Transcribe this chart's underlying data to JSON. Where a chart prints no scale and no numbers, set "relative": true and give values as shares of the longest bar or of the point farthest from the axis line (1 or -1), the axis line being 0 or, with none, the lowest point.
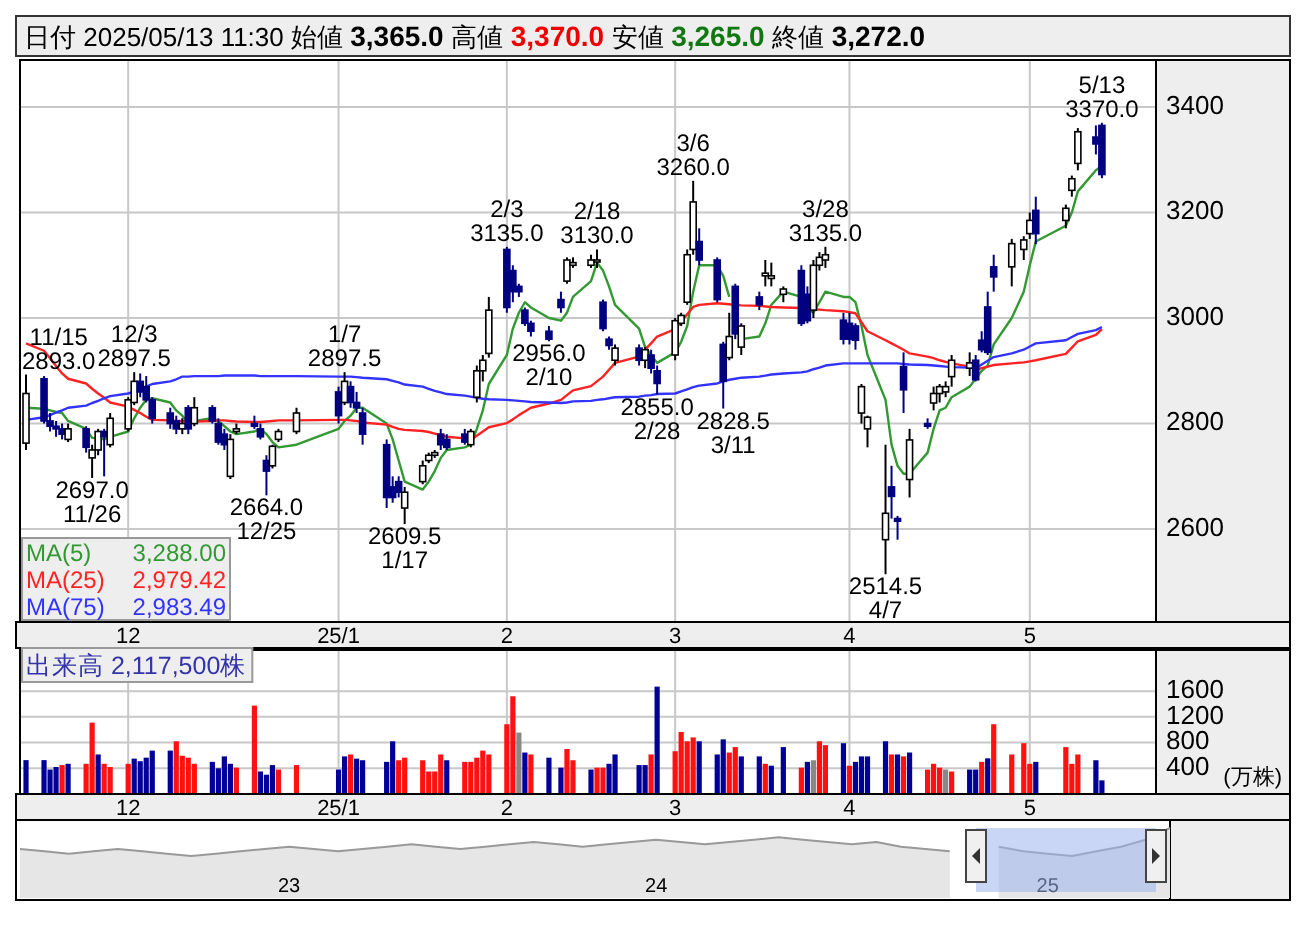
{
  "chart_data": [
    {
      "type": "candlestick",
      "title": "日付 2025/05/13 11:30 始値 3,365.0 高値 3,370.0 安値 3,265.0 終値 3,272.0",
      "x": [
        "2024-11-15",
        "2024-11-18",
        "2024-11-19",
        "2024-11-20",
        "2024-11-21",
        "2024-11-22",
        "2024-11-25",
        "2024-11-26",
        "2024-11-27",
        "2024-11-28",
        "2024-11-29",
        "2024-12-02",
        "2024-12-03",
        "2024-12-04",
        "2024-12-05",
        "2024-12-06",
        "2024-12-09",
        "2024-12-10",
        "2024-12-11",
        "2024-12-12",
        "2024-12-13",
        "2024-12-16",
        "2024-12-17",
        "2024-12-18",
        "2024-12-19",
        "2024-12-20",
        "2024-12-23",
        "2024-12-24",
        "2024-12-25",
        "2024-12-26",
        "2024-12-27",
        "2024-12-30",
        "2025-01-06",
        "2025-01-07",
        "2025-01-08",
        "2025-01-09",
        "2025-01-10",
        "2025-01-14",
        "2025-01-15",
        "2025-01-16",
        "2025-01-17",
        "2025-01-20",
        "2025-01-21",
        "2025-01-22",
        "2025-01-23",
        "2025-01-24",
        "2025-01-27",
        "2025-01-28",
        "2025-01-29",
        "2025-01-30",
        "2025-01-31",
        "2025-02-03",
        "2025-02-04",
        "2025-02-05",
        "2025-02-06",
        "2025-02-07",
        "2025-02-10",
        "2025-02-12",
        "2025-02-13",
        "2025-02-14",
        "2025-02-17",
        "2025-02-18",
        "2025-02-19",
        "2025-02-20",
        "2025-02-21",
        "2025-02-25",
        "2025-02-26",
        "2025-02-27",
        "2025-02-28",
        "2025-03-03",
        "2025-03-04",
        "2025-03-05",
        "2025-03-06",
        "2025-03-07",
        "2025-03-10",
        "2025-03-11",
        "2025-03-12",
        "2025-03-13",
        "2025-03-14",
        "2025-03-17",
        "2025-03-18",
        "2025-03-19",
        "2025-03-21",
        "2025-03-24",
        "2025-03-25",
        "2025-03-26",
        "2025-03-27",
        "2025-03-28",
        "2025-03-31",
        "2025-04-01",
        "2025-04-02",
        "2025-04-03",
        "2025-04-04",
        "2025-04-07",
        "2025-04-08",
        "2025-04-09",
        "2025-04-10",
        "2025-04-11",
        "2025-04-14",
        "2025-04-15",
        "2025-04-16",
        "2025-04-17",
        "2025-04-18",
        "2025-04-21",
        "2025-04-22",
        "2025-04-23",
        "2025-04-24",
        "2025-04-25",
        "2025-04-28",
        "2025-04-30",
        "2025-05-01",
        "2025-05-02",
        "2025-05-07",
        "2025-05-08",
        "2025-05-09",
        "2025-05-12",
        "2025-05-13"
      ],
      "ohlc": [
        [
          2763,
          2893,
          2750,
          2857
        ],
        [
          2885,
          2890,
          2800,
          2805
        ],
        [
          2805,
          2820,
          2785,
          2795
        ],
        [
          2795,
          2805,
          2775,
          2790
        ],
        [
          2790,
          2800,
          2770,
          2780
        ],
        [
          2770,
          2800,
          2765,
          2790
        ],
        [
          2790,
          2795,
          2745,
          2755
        ],
        [
          2735,
          2760,
          2697,
          2750
        ],
        [
          2750,
          2790,
          2740,
          2785
        ],
        [
          2785,
          2790,
          2700,
          2775
        ],
        [
          2760,
          2820,
          2755,
          2810
        ],
        [
          2790,
          2850,
          2785,
          2845
        ],
        [
          2840,
          2897.5,
          2835,
          2880
        ],
        [
          2880,
          2895,
          2850,
          2860
        ],
        [
          2870,
          2890,
          2840,
          2845
        ],
        [
          2845,
          2850,
          2800,
          2810
        ],
        [
          2820,
          2830,
          2790,
          2800
        ],
        [
          2805,
          2815,
          2780,
          2790
        ],
        [
          2790,
          2810,
          2780,
          2800
        ],
        [
          2830,
          2835,
          2780,
          2790
        ],
        [
          2800,
          2850,
          2795,
          2830
        ],
        [
          2830,
          2835,
          2800,
          2805
        ],
        [
          2800,
          2810,
          2760,
          2765
        ],
        [
          2780,
          2790,
          2750,
          2760
        ],
        [
          2700,
          2780,
          2695,
          2770
        ],
        [
          2785,
          2800,
          2780,
          2790
        ],
        [
          2800,
          2815,
          2790,
          2795
        ],
        [
          2790,
          2800,
          2770,
          2775
        ],
        [
          2730,
          2740,
          2664,
          2710
        ],
        [
          2720,
          2760,
          2715,
          2757
        ],
        [
          2770,
          2790,
          2765,
          2785
        ],
        [
          2785,
          2830,
          2780,
          2820
        ],
        [
          2860,
          2870,
          2800,
          2815
        ],
        [
          2840,
          2897.5,
          2835,
          2880
        ],
        [
          2870,
          2880,
          2830,
          2840
        ],
        [
          2840,
          2860,
          2820,
          2830
        ],
        [
          2820,
          2830,
          2760,
          2780
        ],
        [
          2760,
          2770,
          2640,
          2660
        ],
        [
          2680,
          2700,
          2650,
          2660
        ],
        [
          2690,
          2700,
          2660,
          2670
        ],
        [
          2640,
          2680,
          2609.5,
          2670
        ],
        [
          2690,
          2730,
          2685,
          2720
        ],
        [
          2730,
          2745,
          2725,
          2740
        ],
        [
          2740,
          2750,
          2735,
          2745
        ],
        [
          2780,
          2790,
          2750,
          2760
        ],
        [
          2770,
          2780,
          2750,
          2755
        ],
        [
          2780,
          2790,
          2760,
          2765
        ],
        [
          2760,
          2790,
          2755,
          2785
        ],
        [
          2850,
          2910,
          2840,
          2900
        ],
        [
          2900,
          2930,
          2880,
          2920
        ],
        [
          2933,
          3040,
          2925,
          3015
        ],
        [
          3130,
          3135,
          3010,
          3020
        ],
        [
          3090,
          3100,
          3030,
          3050
        ],
        [
          3060,
          3065,
          3040,
          3050
        ],
        [
          3015,
          3020,
          2985,
          2990
        ],
        [
          2990,
          2995,
          2965,
          2975
        ],
        [
          2975,
          2985,
          2956,
          2960
        ],
        [
          3035,
          3050,
          3010,
          3020
        ],
        [
          3070,
          3115,
          3065,
          3110
        ],
        [
          3100,
          3115,
          3095,
          3105
        ],
        [
          3100,
          3120,
          3095,
          3110
        ],
        [
          3108,
          3130,
          3095,
          3110
        ],
        [
          3030,
          3035,
          2975,
          2980
        ],
        [
          2960,
          2965,
          2940,
          2948
        ],
        [
          2920,
          2950,
          2910,
          2943
        ],
        [
          2943,
          2950,
          2910,
          2920
        ],
        [
          2920,
          2945,
          2905,
          2940
        ],
        [
          2930,
          2940,
          2895,
          2905
        ],
        [
          2900,
          2910,
          2855,
          2876
        ],
        [
          2930,
          3000,
          2920,
          2995
        ],
        [
          2990,
          3010,
          2985,
          3005
        ],
        [
          3030,
          3130,
          3025,
          3120
        ],
        [
          3130,
          3260,
          3120,
          3220
        ],
        [
          3145,
          3170,
          3100,
          3110
        ],
        [
          3110,
          3115,
          3030,
          3035
        ],
        [
          2950,
          2955,
          2828.5,
          2880
        ],
        [
          2925,
          3010,
          2920,
          2965
        ],
        [
          3060,
          3065,
          2960,
          2970
        ],
        [
          2945,
          2990,
          2930,
          2985
        ],
        [
          3040,
          3050,
          3015,
          3025
        ],
        [
          3080,
          3110,
          3060,
          3085
        ],
        [
          3075,
          3105,
          3060,
          3080
        ],
        [
          3045,
          3060,
          3030,
          3055
        ],
        [
          3090,
          3100,
          2985,
          2990
        ],
        [
          3045,
          3060,
          2990,
          2995
        ],
        [
          3015,
          3110,
          3000,
          3100
        ],
        [
          3100,
          3125,
          3090,
          3115
        ],
        [
          3110,
          3135,
          3095,
          3120
        ],
        [
          2996,
          3010,
          2950,
          2960
        ],
        [
          2990,
          3010,
          2950,
          2960
        ],
        [
          2985,
          2990,
          2940,
          2958
        ],
        [
          2820,
          2875,
          2800,
          2870
        ],
        [
          2790,
          2815,
          2755,
          2812
        ],
        [
          2580,
          2760,
          2514.5,
          2630
        ],
        [
          2680,
          2720,
          2620,
          2662
        ],
        [
          2620,
          2625,
          2580,
          2615
        ],
        [
          2908,
          2935,
          2820,
          2864
        ],
        [
          2694,
          2790,
          2660,
          2769
        ],
        [
          2800,
          2810,
          2790,
          2795
        ],
        [
          2839,
          2870,
          2825,
          2857
        ],
        [
          2857,
          2875,
          2840,
          2870
        ],
        [
          2860,
          2880,
          2850,
          2870
        ],
        [
          2889,
          2930,
          2870,
          2920
        ],
        [
          2905,
          2935,
          2890,
          2915
        ],
        [
          2920,
          2930,
          2880,
          2883
        ],
        [
          2958,
          2975,
          2935,
          2940
        ],
        [
          3021,
          3050,
          2930,
          2935
        ],
        [
          3097,
          3120,
          3050,
          3078
        ],
        [
          3097,
          3150,
          3060,
          3141
        ],
        [
          3130,
          3155,
          3110,
          3148
        ],
        [
          3160,
          3200,
          3150,
          3185
        ],
        [
          3204,
          3230,
          3140,
          3160
        ],
        [
          3185,
          3215,
          3170,
          3208
        ],
        [
          3242,
          3270,
          3230,
          3264
        ],
        [
          3293,
          3360,
          3280,
          3353
        ],
        [
          3343,
          3365,
          3310,
          3330
        ],
        [
          3365,
          3370,
          3265,
          3272
        ]
      ],
      "series": [
        {
          "name": "MA(5)",
          "type": "line",
          "color": "#339933",
          "values": [
            2830,
            2828,
            2825,
            2822,
            2820,
            2805,
            2790,
            2773,
            2772,
            2770,
            2775,
            2785,
            2810,
            2830,
            2845,
            2848,
            2840,
            2825,
            2815,
            2800,
            2805,
            2810,
            2805,
            2795,
            2785,
            2780,
            2785,
            2790,
            2780,
            2765,
            2755,
            2760,
            2790,
            2805,
            2815,
            2830,
            2830,
            2800,
            2770,
            2730,
            2690,
            2675,
            2690,
            2710,
            2735,
            2750,
            2755,
            2760,
            2790,
            2825,
            2875,
            2930,
            2980,
            3010,
            3030,
            3020,
            3000,
            2995,
            3010,
            3040,
            3070,
            3105,
            3090,
            3060,
            3025,
            2980,
            2945,
            2930,
            2915,
            2935,
            2955,
            2985,
            3050,
            3100,
            3100,
            3080,
            3040,
            null,
            2960,
            2965,
            2990,
            3025,
            3050,
            3040,
            3020,
            3010,
            3030,
            3050,
            3040,
            3040,
            3030,
            2985,
            2930,
            2845,
            2760,
            2720,
            2705,
            2705,
            2745,
            2790,
            2825,
            2830,
            2850,
            2870,
            2885,
            2900,
            2910,
            2950,
            3000,
            3050,
            3100,
            3145,
            3175,
            3200,
            3240,
            3280,
            3288
          ]
        },
        {
          "name": "MA(25)",
          "type": "line",
          "color": "#ff2222",
          "values": [
            2952,
            2938,
            2924,
            2909,
            2895,
            2885,
            2876,
            2866,
            2857,
            2849,
            2840,
            2832,
            2826,
            2820,
            2813,
            2807,
            2806,
            2805,
            2805,
            2804,
            2804,
            2805,
            2806,
            2806,
            2805,
            2804,
            2803,
            2803,
            2804,
            2805,
            2806,
            2806,
            2807,
            2807,
            2806,
            2805,
            2802,
            2798,
            2794,
            2790,
            2788,
            2786,
            2784,
            2781,
            2778,
            2775,
            2772,
            2769,
            2777,
            2785,
            2793,
            2801,
            2808,
            2816,
            2823,
            2830,
            2838,
            2845,
            2854,
            2863,
            2871,
            2880,
            2889,
            2902,
            2915,
            2927,
            2940,
            2952,
            2965,
            2979,
            2993,
            3007,
            3021,
            3025,
            3028,
            3027,
            3026,
            3025,
            3024,
            3023,
            3022,
            3021,
            3020,
            3019,
            null,
            3017,
            3016,
            3015,
            3013,
            3011,
            3009,
            2992,
            2975,
            2958,
            2952,
            2946,
            2940,
            2933,
            2927,
            2924,
            2920,
            2917,
            2914,
            2908,
            2902,
            2905,
            2908,
            2911,
            2914,
            2916,
            2918,
            2920,
            2932,
            2944,
            2956,
            2968,
            2979
          ]
        },
        {
          "name": "MA(75)",
          "type": "line",
          "color": "#3333ff",
          "values": [
            2807,
            2812,
            2816,
            2821,
            2825,
            2830,
            2834,
            2839,
            2843,
            2848,
            2852,
            2857,
            2861,
            2866,
            2870,
            2875,
            2880,
            2884,
            2889,
            2889,
            2890,
            2890,
            2890,
            2891,
            2891,
            2891,
            2891,
            2890,
            2890,
            2890,
            2890,
            2890,
            2889,
            2889,
            2889,
            2888,
            2887,
            2884,
            2881,
            2878,
            2874,
            2870,
            2866,
            2862,
            2859,
            2856,
            2853,
            2851,
            2849,
            2847,
            2846,
            2845,
            2844,
            2843,
            2842,
            2841,
            2840,
            2839,
            2840,
            2842,
            2843,
            2845,
            2846,
            2848,
            2850,
            2851,
            2853,
            2854,
            2856,
            2857,
            2861,
            2865,
            2869,
            2872,
            2876,
            2880,
            2883,
            2885,
            2887,
            2889,
            2891,
            2893,
            2895,
            2897,
            2899,
            2903,
            2906,
            2910,
            2914,
            2914,
            2914,
            2914,
            2914,
            2914,
            2914,
            2914,
            2913,
            2912,
            2911,
            2910,
            2909,
            2908,
            2907,
            2906,
            2905,
            2912,
            2919,
            2926,
            2933,
            2940,
            2946,
            2952,
            2958,
            2964,
            2970,
            2977,
            2983
          ]
        }
      ],
      "ylim": [
        2424,
        3489
      ],
      "yticks": [
        2600,
        2800,
        3000,
        3200,
        3400
      ],
      "xlim": [
        "2024-11-14",
        "2025-05-22"
      ],
      "xticks": [
        {
          "value": "2024-12-02",
          "label": "12"
        },
        {
          "value": "2025-01-06",
          "label": "25/1"
        },
        {
          "value": "2025-02-03",
          "label": "2"
        },
        {
          "value": "2025-03-03",
          "label": "3"
        },
        {
          "value": "2025-04-01",
          "label": "4"
        },
        {
          "value": "2025-05-01",
          "label": "5"
        }
      ],
      "grid": true,
      "legend": "bottom left",
      "annotations": [
        "3,288.00",
        "2,979.42",
        "2,983.49",
        {
          "text": "11/15 2893.0",
          "x": "2024-11-15",
          "y": 2893
        },
        {
          "text": "2697.0 11/26",
          "x": "2024-11-26",
          "y": 2697
        },
        {
          "text": "12/3 2897.5",
          "x": "2024-12-03",
          "y": 2897.5
        },
        {
          "text": "2664.0 12/25",
          "x": "2024-12-25",
          "y": 2664
        },
        {
          "text": "1/7 2897.5",
          "x": "2025-01-07",
          "y": 2897.5
        },
        {
          "text": "2609.5 1/17",
          "x": "2025-01-17",
          "y": 2609.5
        },
        {
          "text": "2/3 3135.0",
          "x": "2025-02-03",
          "y": 3135
        },
        {
          "text": "2956.0 2/10",
          "x": "2025-02-10",
          "y": 2956
        },
        {
          "text": "2/18 3130.0",
          "x": "2025-02-18",
          "y": 3130
        },
        {
          "text": "2855.0 2/28",
          "x": "2025-02-28",
          "y": 2855
        },
        {
          "text": "3/6 3260.0",
          "x": "2025-03-06",
          "y": 3260
        },
        {
          "text": "2828.5 3/11",
          "x": "2025-03-11",
          "y": 2828.5
        },
        {
          "text": "3/28 3135.0",
          "x": "2025-03-28",
          "y": 3135
        },
        {
          "text": "2514.5 4/7",
          "x": "2025-04-07",
          "y": 2514.5
        },
        {
          "text": "5/13 3370.0",
          "x": "2025-05-13",
          "y": 3370
        }
      ]
    },
    {
      "type": "bar",
      "ylabel": "(万株)",
      "annotations": [
        "出来高 2,117,500株"
      ],
      "x": [
        "2024-11-15",
        "2024-11-18",
        "2024-11-19",
        "2024-11-20",
        "2024-11-21",
        "2024-11-22",
        "2024-11-25",
        "2024-11-26",
        "2024-11-27",
        "2024-11-28",
        "2024-11-29",
        "2024-12-02",
        "2024-12-03",
        "2024-12-04",
        "2024-12-05",
        "2024-12-06",
        "2024-12-09",
        "2024-12-10",
        "2024-12-11",
        "2024-12-12",
        "2024-12-13",
        "2024-12-16",
        "2024-12-17",
        "2024-12-18",
        "2024-12-19",
        "2024-12-20",
        "2024-12-23",
        "2024-12-24",
        "2024-12-25",
        "2024-12-26",
        "2024-12-27",
        "2024-12-30",
        "2025-01-06",
        "2025-01-07",
        "2025-01-08",
        "2025-01-09",
        "2025-01-10",
        "2025-01-14",
        "2025-01-15",
        "2025-01-16",
        "2025-01-17",
        "2025-01-20",
        "2025-01-21",
        "2025-01-22",
        "2025-01-23",
        "2025-01-24",
        "2025-01-27",
        "2025-01-28",
        "2025-01-29",
        "2025-01-30",
        "2025-01-31",
        "2025-02-03",
        "2025-02-04",
        "2025-02-05",
        "2025-02-06",
        "2025-02-07",
        "2025-02-10",
        "2025-02-12",
        "2025-02-13",
        "2025-02-14",
        "2025-02-17",
        "2025-02-18",
        "2025-02-19",
        "2025-02-20",
        "2025-02-21",
        "2025-02-25",
        "2025-02-26",
        "2025-02-27",
        "2025-02-28",
        "2025-03-03",
        "2025-03-04",
        "2025-03-05",
        "2025-03-06",
        "2025-03-07",
        "2025-03-10",
        "2025-03-11",
        "2025-03-12",
        "2025-03-13",
        "2025-03-14",
        "2025-03-17",
        "2025-03-18",
        "2025-03-19",
        "2025-03-21",
        "2025-03-24",
        "2025-03-25",
        "2025-03-26",
        "2025-03-27",
        "2025-03-28",
        "2025-03-31",
        "2025-04-01",
        "2025-04-02",
        "2025-04-03",
        "2025-04-04",
        "2025-04-07",
        "2025-04-08",
        "2025-04-09",
        "2025-04-10",
        "2025-04-11",
        "2025-04-14",
        "2025-04-15",
        "2025-04-16",
        "2025-04-17",
        "2025-04-18",
        "2025-04-21",
        "2025-04-22",
        "2025-04-23",
        "2025-04-24",
        "2025-04-25",
        "2025-04-28",
        "2025-04-30",
        "2025-05-01",
        "2025-05-02",
        "2025-05-07",
        "2025-05-08",
        "2025-05-09",
        "2025-05-12",
        "2025-05-13"
      ],
      "values": [
        527,
        527,
        380,
        420,
        450,
        470,
        470,
        1110,
        615,
        470,
        420,
        470,
        550,
        510,
        565,
        675,
        675,
        820,
        595,
        565,
        470,
        500,
        400,
        585,
        470,
        410,
        1375,
        350,
        300,
        450,
        380,
        450,
        380,
        585,
        615,
        550,
        525,
        500,
        820,
        525,
        565,
        525,
        350,
        350,
        615,
        525,
        500,
        500,
        565,
        675,
        615,
        1085,
        1520,
        955,
        645,
        615,
        565,
        410,
        700,
        525,
        380,
        410,
        410,
        470,
        615,
        450,
        450,
        615,
        1670,
        665,
        965,
        820,
        880,
        820,
        615,
        850,
        645,
        730,
        585,
        585,
        470,
        440,
        730,
        410,
        500,
        525,
        820,
        760,
        790,
        440,
        500,
        585,
        585,
        820,
        615,
        615,
        585,
        645,
        380,
        470,
        410,
        380,
        350,
        380,
        380,
        500,
        555,
        1085,
        615,
        790,
        470,
        500,
        730,
        470,
        615,
        525,
        212
      ],
      "colors": [
        "#000099",
        "#000099",
        "#000099",
        "#000099",
        "#ff1111",
        "#000099",
        "#ff1111",
        "#ff1111",
        "#000099",
        "#ff1111",
        "#ff1111",
        "#ff1111",
        "#000099",
        "#000099",
        "#000099",
        "#000099",
        "#000099",
        "#ff1111",
        "#ff1111",
        "#ff1111",
        "#ff1111",
        "#000099",
        "#000099",
        "#000099",
        "#000099",
        "#ff1111",
        "#ff1111",
        "#000099",
        "#000099",
        "#000099",
        "#ff1111",
        "#ff1111",
        "#000099",
        "#000099",
        "#ff1111",
        "#000099",
        "#000099",
        "#000099",
        "#000099",
        "#ff1111",
        "#ff1111",
        "#ff1111",
        "#ff1111",
        "#ff1111",
        "#ff1111",
        "#000099",
        "#ff1111",
        "#ff1111",
        "#ff1111",
        "#ff1111",
        "#ff1111",
        "#ff1111",
        "#ff1111",
        "#888888",
        "#000099",
        "#ff1111",
        "#000099",
        "#000099",
        "#ff1111",
        "#ff1111",
        "#000099",
        "#ff1111",
        "#ff1111",
        "#000099",
        "#000099",
        "#000099",
        "#000099",
        "#ff1111",
        "#000099",
        "#ff1111",
        "#ff1111",
        "#ff1111",
        "#ff1111",
        "#000099",
        "#000099",
        "#000099",
        "#ff1111",
        "#ff1111",
        "#000099",
        "#000099",
        "#ff1111",
        "#000099",
        "#000099",
        "#ff1111",
        "#000099",
        "#888888",
        "#ff1111",
        "#ff1111",
        "#000099",
        "#ff1111",
        "#000099",
        "#000099",
        "#000099",
        "#000099",
        "#ff1111",
        "#000099",
        "#ff1111",
        "#000099",
        "#ff1111",
        "#ff1111",
        "#ff1111",
        "#888888",
        "#ff1111",
        "#000099",
        "#000099",
        "#ff1111",
        "#000099",
        "#ff1111",
        "#ff1111",
        "#ff1111",
        "#ff1111",
        "#000099",
        "#ff1111",
        "#ff1111",
        "#ff1111",
        "#000099",
        "#000099"
      ],
      "ylim": [
        0,
        2240
      ],
      "yticks": [
        400,
        800,
        1200,
        1600
      ],
      "xlim": [
        "2024-11-14",
        "2025-05-22"
      ],
      "xticks": [
        {
          "value": "2024-12-02",
          "label": "12"
        },
        {
          "value": "2025-01-06",
          "label": "25/1"
        },
        {
          "value": "2025-02-03",
          "label": "2"
        },
        {
          "value": "2025-03-03",
          "label": "3"
        },
        {
          "value": "2025-04-01",
          "label": "4"
        },
        {
          "value": "2025-05-01",
          "label": "5"
        }
      ],
      "grid": true
    },
    {
      "type": "area",
      "relative": true,
      "color": "#999999",
      "categories": [
        null,
        null,
        null,
        null,
        null,
        null,
        null,
        null,
        null,
        null,
        null,
        "23",
        null,
        null,
        null,
        null,
        null,
        null,
        null,
        null,
        null,
        null,
        null,
        null,
        null,
        null,
        "24",
        null,
        null,
        null,
        null,
        null,
        null,
        null,
        null,
        null,
        null,
        null,
        null,
        null,
        null,
        null,
        "25",
        null,
        null,
        null,
        null,
        null
      ],
      "values": [
        0.25,
        0.17,
        0.08,
        0.17,
        0.25,
        0.17,
        0.08,
        0,
        0.08,
        0.17,
        0.25,
        0.33,
        0.25,
        0.17,
        0.25,
        0.33,
        0.42,
        0.33,
        0.25,
        0.33,
        0.42,
        0.5,
        0.42,
        0.33,
        0.42,
        0.5,
        0.58,
        0.5,
        0.42,
        0.5,
        0.58,
        0.67,
        0.58,
        0.5,
        0.42,
        0.5,
        0.33,
        0.25,
        0.17,
        null,
        0.33,
        0.17,
        0.08,
        0,
        0.17,
        0.33,
        0.58,
        1
      ]
    }
  ]
}
